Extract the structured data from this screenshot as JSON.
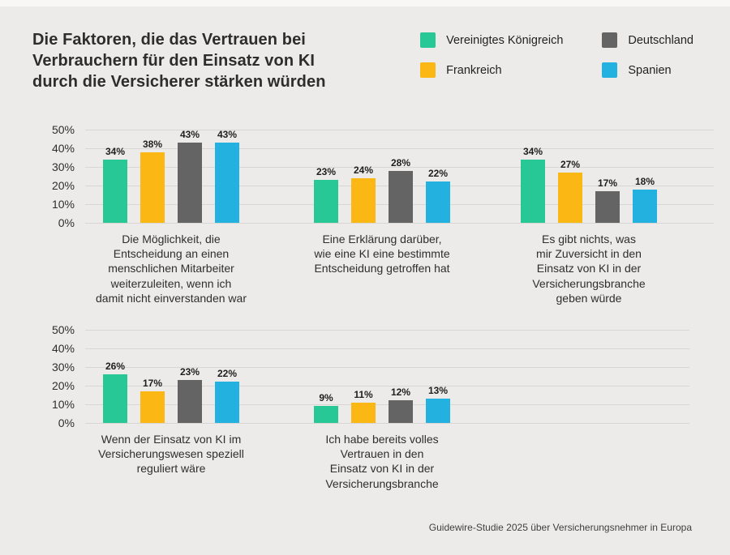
{
  "header": {
    "title": "Die Faktoren, die das Vertrauen bei\nVerbrauchern für den Einsatz von KI\ndurch die Versicherer stärken würden"
  },
  "footer": {
    "source": "Guidewire-Studie 2025 über Versicherungsnehmer in Europa"
  },
  "colors": {
    "background": "#edebe9",
    "gridline": "#d8d6d3",
    "text": "#2d2d2d"
  },
  "chart_data": {
    "type": "bar",
    "unit": "%",
    "ylim": [
      0,
      50
    ],
    "yticks": [
      "50%",
      "40%",
      "30%",
      "20%",
      "10%",
      "0%"
    ],
    "grid": true,
    "legend_position": "top-right",
    "series": [
      {
        "name": "Vereinigtes Königreich",
        "color": "#28c796"
      },
      {
        "name": "Frankreich",
        "color": "#fbb713"
      },
      {
        "name": "Deutschland",
        "color": "#646464"
      },
      {
        "name": "Spanien",
        "color": "#23b2e0"
      }
    ],
    "rows": [
      {
        "groups": [
          {
            "category": "Die Möglichkeit, die\nEntscheidung an einen\nmenschlichen Mitarbeiter\nweiterzuleiten, wenn ich\ndamit nicht einverstanden war",
            "values": [
              34,
              38,
              43,
              43
            ]
          },
          {
            "category": "Eine Erklärung darüber,\nwie eine KI eine bestimmte\nEntscheidung getroffen hat",
            "values": [
              23,
              24,
              28,
              22
            ]
          },
          {
            "category": "Es gibt nichts, was\nmir Zuversicht in den\nEinsatz von KI in der\nVersicherungsbranche\ngeben würde",
            "values": [
              34,
              27,
              17,
              18
            ]
          }
        ]
      },
      {
        "groups": [
          {
            "category": "Wenn der Einsatz von KI im\nVersicherungswesen speziell\nreguliert wäre",
            "values": [
              26,
              17,
              23,
              22
            ]
          },
          {
            "category": "Ich habe bereits volles\nVertrauen in den\nEinsatz von KI in der\nVersicherungsbranche",
            "values": [
              9,
              11,
              12,
              13
            ]
          }
        ]
      }
    ]
  }
}
